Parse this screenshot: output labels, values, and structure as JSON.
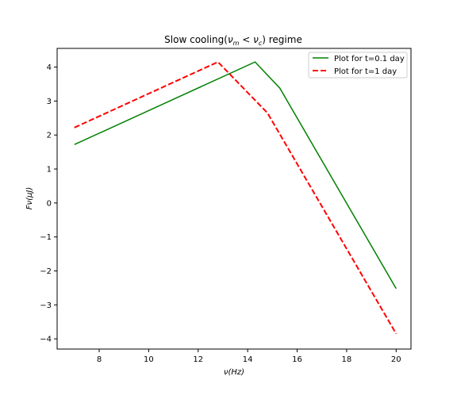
{
  "chart_data": {
    "type": "line",
    "title": "Slow cooling(νₘ < ν꜀) regime",
    "title_parts": {
      "prefix": "Slow cooling(",
      "nu": "ν",
      "sub1": "m",
      "lt": " < ",
      "sub2": "c",
      "suffix": ") regime"
    },
    "xlabel": "ν(Hz)",
    "ylabel": "Fν(μJ)",
    "xlim": [
      6.3,
      20.6
    ],
    "ylim": [
      -4.3,
      4.55
    ],
    "xticks": [
      8,
      10,
      12,
      14,
      16,
      18,
      20
    ],
    "yticks": [
      -4,
      -3,
      -2,
      -1,
      0,
      1,
      2,
      3,
      4
    ],
    "grid": false,
    "legend_position": "top-right",
    "series": [
      {
        "name": "Plot for t=0.1 day",
        "color": "#008000",
        "style": "solid",
        "x": [
          7.0,
          14.3,
          15.3,
          20.0
        ],
        "y": [
          1.72,
          4.15,
          3.38,
          -2.52
        ]
      },
      {
        "name": "Plot for t=1 day",
        "color": "#ff0000",
        "style": "dashed",
        "x": [
          7.0,
          12.8,
          14.8,
          20.0
        ],
        "y": [
          2.22,
          4.15,
          2.65,
          -3.85
        ]
      }
    ]
  }
}
